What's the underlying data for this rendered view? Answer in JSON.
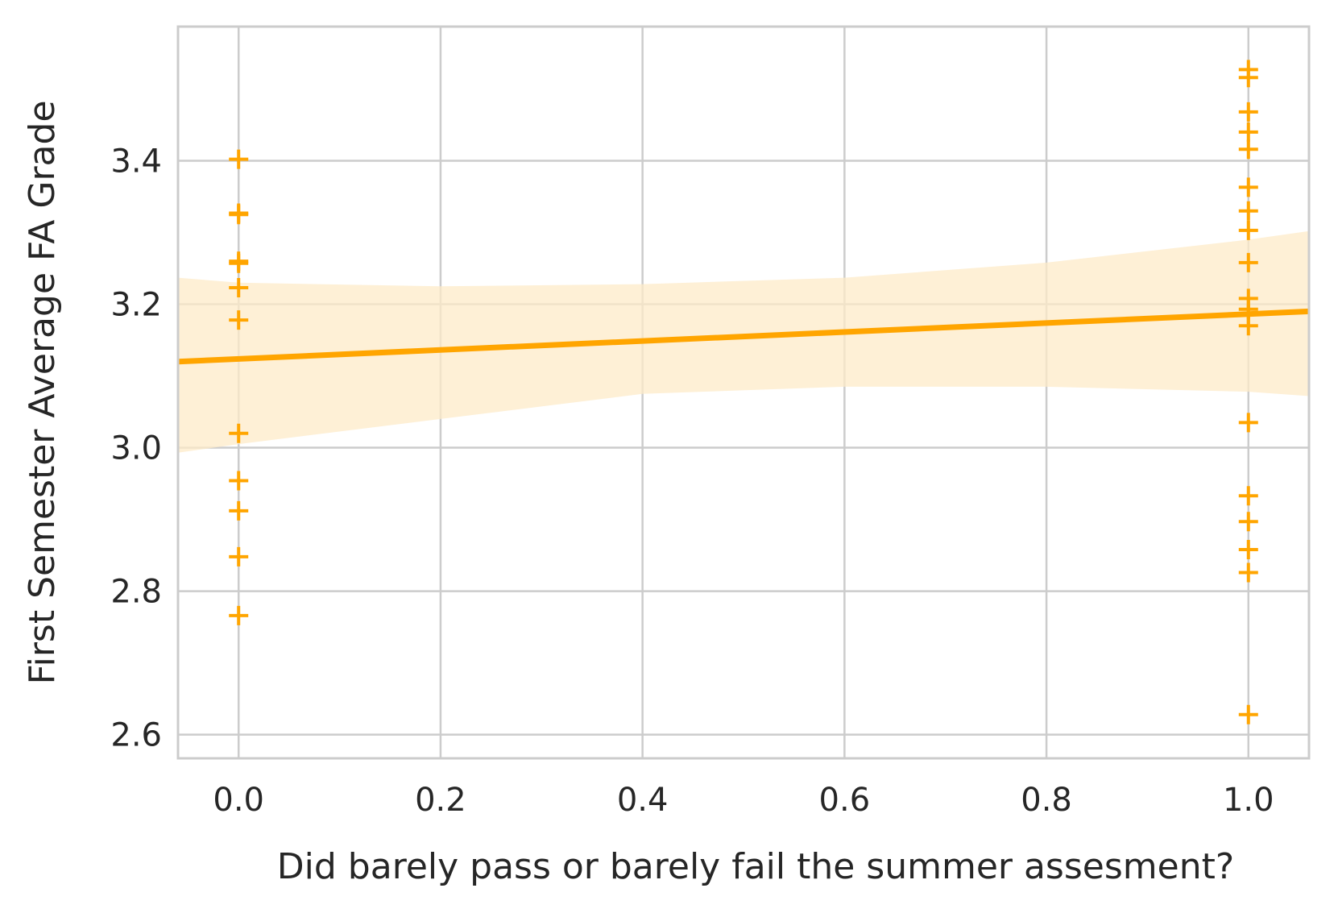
{
  "chart_data": {
    "type": "scatter",
    "xlabel": "Did barely pass or barely fail the summer assesment?",
    "ylabel": "First Semester Average FA Grade",
    "xlim": [
      -0.06,
      1.06
    ],
    "ylim": [
      2.567,
      3.587
    ],
    "xticks": [
      "0.0",
      "0.2",
      "0.4",
      "0.6",
      "0.8",
      "1.0"
    ],
    "yticks": [
      "2.6",
      "2.8",
      "3.0",
      "3.2",
      "3.4"
    ],
    "grid": true,
    "marker": "+",
    "color": "#ffa500",
    "band_color": "#fdebc8",
    "points": [
      {
        "x": 0,
        "y": 3.402
      },
      {
        "x": 0,
        "y": 3.327
      },
      {
        "x": 0,
        "y": 3.325
      },
      {
        "x": 0,
        "y": 3.26
      },
      {
        "x": 0,
        "y": 3.257
      },
      {
        "x": 0,
        "y": 3.223
      },
      {
        "x": 0,
        "y": 3.178
      },
      {
        "x": 0,
        "y": 3.02
      },
      {
        "x": 0,
        "y": 2.954
      },
      {
        "x": 0,
        "y": 2.912
      },
      {
        "x": 0,
        "y": 2.848
      },
      {
        "x": 0,
        "y": 2.766
      },
      {
        "x": 1,
        "y": 3.527
      },
      {
        "x": 1,
        "y": 3.516
      },
      {
        "x": 1,
        "y": 3.468
      },
      {
        "x": 1,
        "y": 3.44
      },
      {
        "x": 1,
        "y": 3.416
      },
      {
        "x": 1,
        "y": 3.363
      },
      {
        "x": 1,
        "y": 3.33
      },
      {
        "x": 1,
        "y": 3.303
      },
      {
        "x": 1,
        "y": 3.258
      },
      {
        "x": 1,
        "y": 3.208
      },
      {
        "x": 1,
        "y": 3.193
      },
      {
        "x": 1,
        "y": 3.186
      },
      {
        "x": 1,
        "y": 3.17
      },
      {
        "x": 1,
        "y": 3.035
      },
      {
        "x": 1,
        "y": 2.933
      },
      {
        "x": 1,
        "y": 2.897
      },
      {
        "x": 1,
        "y": 2.858
      },
      {
        "x": 1,
        "y": 2.826
      },
      {
        "x": 1,
        "y": 2.628
      }
    ],
    "regression": {
      "x": [
        -0.06,
        1.06
      ],
      "y": [
        3.12,
        3.19
      ]
    },
    "confidence_band": {
      "x": [
        -0.06,
        0.0,
        0.2,
        0.4,
        0.6,
        0.8,
        1.0,
        1.06
      ],
      "upper": [
        3.237,
        3.23,
        3.225,
        3.228,
        3.237,
        3.258,
        3.29,
        3.302
      ],
      "lower": [
        2.993,
        3.005,
        3.04,
        3.075,
        3.085,
        3.085,
        3.078,
        3.072
      ]
    }
  }
}
